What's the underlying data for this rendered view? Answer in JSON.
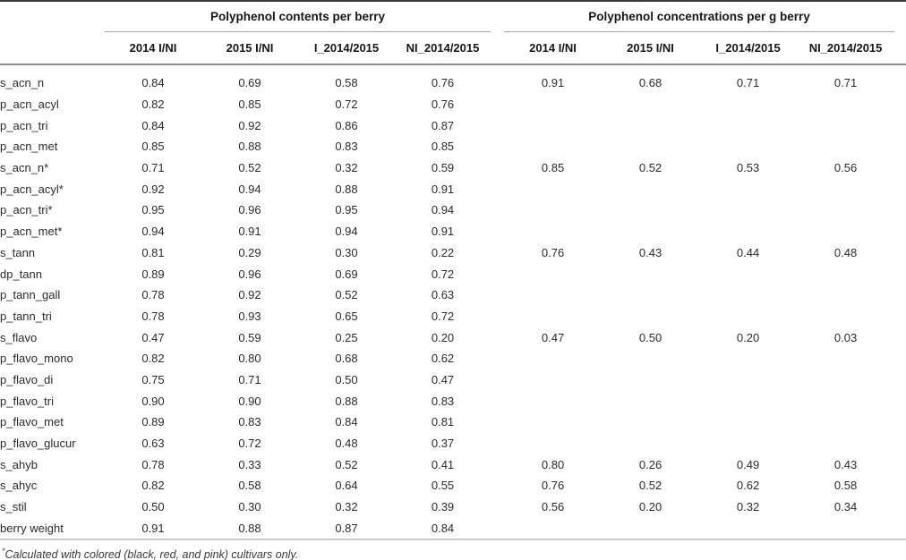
{
  "table": {
    "groups": [
      {
        "label": "Polyphenol contents per berry",
        "columns": [
          "2014 I/NI",
          "2015 I/NI",
          "I_2014/2015",
          "NI_2014/2015"
        ]
      },
      {
        "label": "Polyphenol concentrations per g berry",
        "columns": [
          "2014 I/NI",
          "2015 I/NI",
          "I_2014/2015",
          "NI_2014/2015"
        ]
      }
    ],
    "rows": [
      {
        "label": "s_acn_n",
        "berry": [
          "0.84",
          "0.69",
          "0.58",
          "0.76"
        ],
        "per_g": [
          "0.91",
          "0.68",
          "0.71",
          "0.71"
        ]
      },
      {
        "label": "p_acn_acyl",
        "berry": [
          "0.82",
          "0.85",
          "0.72",
          "0.76"
        ],
        "per_g": [
          "",
          "",
          "",
          ""
        ]
      },
      {
        "label": "p_acn_tri",
        "berry": [
          "0.84",
          "0.92",
          "0.86",
          "0.87"
        ],
        "per_g": [
          "",
          "",
          "",
          ""
        ]
      },
      {
        "label": "p_acn_met",
        "berry": [
          "0.85",
          "0.88",
          "0.83",
          "0.85"
        ],
        "per_g": [
          "",
          "",
          "",
          ""
        ]
      },
      {
        "label": "s_acn_n*",
        "berry": [
          "0.71",
          "0.52",
          "0.32",
          "0.59"
        ],
        "per_g": [
          "0.85",
          "0.52",
          "0.53",
          "0.56"
        ]
      },
      {
        "label": "p_acn_acyl*",
        "berry": [
          "0.92",
          "0.94",
          "0.88",
          "0.91"
        ],
        "per_g": [
          "",
          "",
          "",
          ""
        ]
      },
      {
        "label": "p_acn_tri*",
        "berry": [
          "0.95",
          "0.96",
          "0.95",
          "0.94"
        ],
        "per_g": [
          "",
          "",
          "",
          ""
        ]
      },
      {
        "label": "p_acn_met*",
        "berry": [
          "0.94",
          "0.91",
          "0.94",
          "0.91"
        ],
        "per_g": [
          "",
          "",
          "",
          ""
        ]
      },
      {
        "label": "s_tann",
        "berry": [
          "0.81",
          "0.29",
          "0.30",
          "0.22"
        ],
        "per_g": [
          "0.76",
          "0.43",
          "0.44",
          "0.48"
        ]
      },
      {
        "label": "dp_tann",
        "berry": [
          "0.89",
          "0.96",
          "0.69",
          "0.72"
        ],
        "per_g": [
          "",
          "",
          "",
          ""
        ]
      },
      {
        "label": "p_tann_gall",
        "berry": [
          "0.78",
          "0.92",
          "0.52",
          "0.63"
        ],
        "per_g": [
          "",
          "",
          "",
          ""
        ]
      },
      {
        "label": "p_tann_tri",
        "berry": [
          "0.78",
          "0.93",
          "0.65",
          "0.72"
        ],
        "per_g": [
          "",
          "",
          "",
          ""
        ]
      },
      {
        "label": "s_flavo",
        "berry": [
          "0.47",
          "0.59",
          "0.25",
          "0.20"
        ],
        "per_g": [
          "0.47",
          "0.50",
          "0.20",
          "0.03"
        ]
      },
      {
        "label": "p_flavo_mono",
        "berry": [
          "0.82",
          "0.80",
          "0.68",
          "0.62"
        ],
        "per_g": [
          "",
          "",
          "",
          ""
        ]
      },
      {
        "label": "p_flavo_di",
        "berry": [
          "0.75",
          "0.71",
          "0.50",
          "0.47"
        ],
        "per_g": [
          "",
          "",
          "",
          ""
        ]
      },
      {
        "label": "p_flavo_tri",
        "berry": [
          "0.90",
          "0.90",
          "0.88",
          "0.83"
        ],
        "per_g": [
          "",
          "",
          "",
          ""
        ]
      },
      {
        "label": "p_flavo_met",
        "berry": [
          "0.89",
          "0.83",
          "0.84",
          "0.81"
        ],
        "per_g": [
          "",
          "",
          "",
          ""
        ]
      },
      {
        "label": "p_flavo_glucur",
        "berry": [
          "0.63",
          "0.72",
          "0.48",
          "0.37"
        ],
        "per_g": [
          "",
          "",
          "",
          ""
        ]
      },
      {
        "label": "s_ahyb",
        "berry": [
          "0.78",
          "0.33",
          "0.52",
          "0.41"
        ],
        "per_g": [
          "0.80",
          "0.26",
          "0.49",
          "0.43"
        ]
      },
      {
        "label": "s_ahyc",
        "berry": [
          "0.82",
          "0.58",
          "0.64",
          "0.55"
        ],
        "per_g": [
          "0.76",
          "0.52",
          "0.62",
          "0.58"
        ]
      },
      {
        "label": "s_stil",
        "berry": [
          "0.50",
          "0.30",
          "0.32",
          "0.39"
        ],
        "per_g": [
          "0.56",
          "0.20",
          "0.32",
          "0.34"
        ]
      },
      {
        "label": "berry weight",
        "berry": [
          "0.91",
          "0.88",
          "0.87",
          "0.84"
        ],
        "per_g": [
          "",
          "",
          "",
          ""
        ]
      }
    ],
    "footnote": {
      "marker": "*",
      "text": "Calculated with colored (black, red, and pink) cultivars only."
    }
  },
  "colors": {
    "top_border": "#3a3a3a",
    "group_underline": "#a3a3a3",
    "header_rule": "#8f8f8f",
    "bottom_rule": "#c9c9c9",
    "text": "#2b2b2b"
  }
}
